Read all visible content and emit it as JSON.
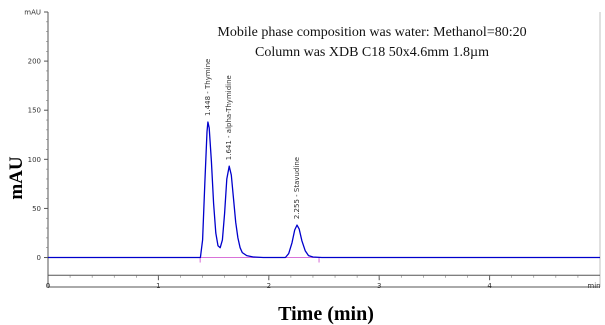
{
  "chart_data": {
    "type": "line",
    "xlabel": "Time (min)",
    "ylabel": "mAU",
    "xlim": [
      0,
      5
    ],
    "ylim": [
      -30,
      250
    ],
    "x_ticks": [
      0,
      1,
      2,
      3,
      4
    ],
    "x_tick_labels": [
      "0",
      "1",
      "2",
      "3",
      "4"
    ],
    "x_unit_label": "min",
    "y_ticks": [
      0,
      50,
      100,
      150,
      200,
      250
    ],
    "y_tick_labels": [
      "0",
      "50",
      "100",
      "150",
      "200",
      "mAU"
    ],
    "annotations": [
      "Mobile phase composition was water: Methanol=80:20",
      "Column was XDB C18 50x4.6mm 1.8µm"
    ],
    "peaks": [
      {
        "retention_time": 1.448,
        "label": "1.448 - Thymine",
        "height": 138,
        "width": 0.045
      },
      {
        "retention_time": 1.641,
        "label": "1.641 - alpha-Thymidine",
        "height": 93,
        "width": 0.05
      },
      {
        "retention_time": 2.255,
        "label": "2.255 - Stavudine",
        "height": 33,
        "width": 0.045
      }
    ],
    "series": [
      {
        "color": "#0000cc",
        "x": [
          0,
          1.38,
          1.4,
          1.42,
          1.44,
          1.448,
          1.46,
          1.48,
          1.5,
          1.52,
          1.54,
          1.56,
          1.58,
          1.6,
          1.62,
          1.641,
          1.66,
          1.68,
          1.7,
          1.72,
          1.74,
          1.76,
          1.8,
          1.86,
          1.95,
          2.15,
          2.18,
          2.21,
          2.235,
          2.255,
          2.275,
          2.3,
          2.33,
          2.36,
          2.4,
          2.48,
          5.0
        ],
        "y": [
          0,
          0,
          18,
          75,
          128,
          138,
          132,
          98,
          55,
          25,
          12,
          10,
          18,
          45,
          80,
          93,
          84,
          60,
          36,
          20,
          10,
          5,
          2,
          0.5,
          0,
          0,
          4,
          15,
          28,
          33,
          29,
          17,
          7,
          2,
          0.5,
          0,
          0
        ]
      }
    ],
    "baseline_color": "#cc44cc"
  }
}
